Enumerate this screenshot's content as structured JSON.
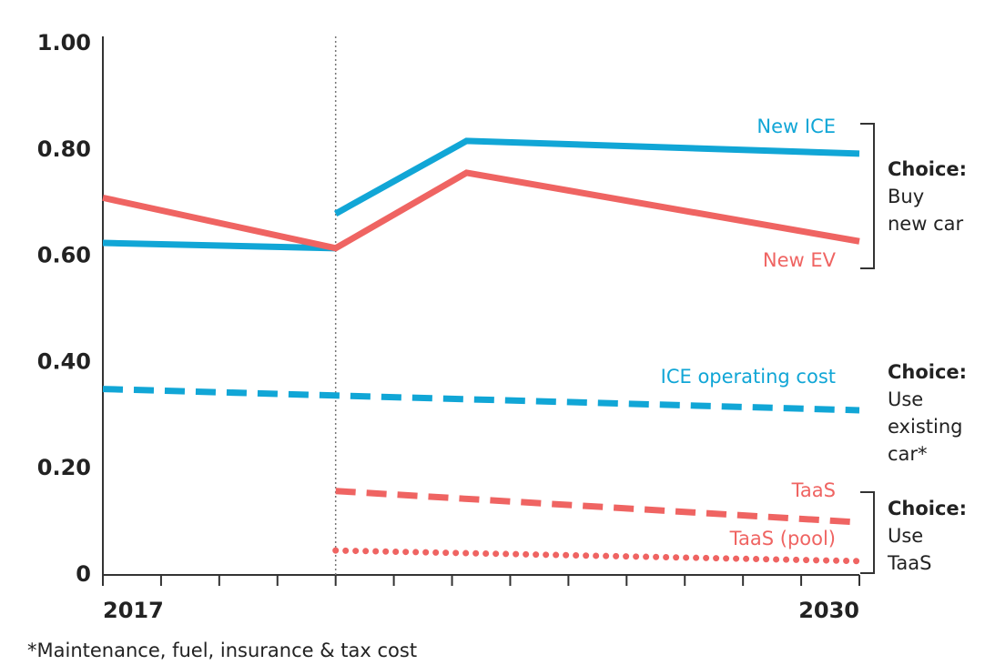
{
  "chart_data": {
    "type": "line",
    "xlim": [
      2017,
      2030
    ],
    "ylim": [
      0,
      1
    ],
    "yticks": [
      {
        "value": 0,
        "label": "0"
      },
      {
        "value": 0.2,
        "label": "0.20"
      },
      {
        "value": 0.4,
        "label": "0.40"
      },
      {
        "value": 0.6,
        "label": "0.60"
      },
      {
        "value": 0.8,
        "label": "0.80"
      },
      {
        "value": 1,
        "label": "1.00"
      }
    ],
    "xticks": [
      2017,
      {
        "value": 2018,
        "label": null
      },
      {
        "value": 2019,
        "label": null
      },
      {
        "value": 2020,
        "label": null
      },
      {
        "value": 2021,
        "label": null
      },
      {
        "value": 2022,
        "label": null
      },
      {
        "value": 2023,
        "label": null
      },
      {
        "value": 2024,
        "label": null
      },
      {
        "value": 2025,
        "label": null
      },
      {
        "value": 2026,
        "label": null
      },
      {
        "value": 2027,
        "label": null
      },
      {
        "value": 2028,
        "label": null
      },
      {
        "value": 2029,
        "label": null
      },
      2030
    ],
    "vline": 2021,
    "series": [
      {
        "name": "New ICE",
        "color": "#11a6d6",
        "style": "solid",
        "x": [
          2017,
          2021,
          2021,
          2021,
          2023.25,
          2030
        ],
        "values": [
          0.625,
          0.615,
          null,
          0.68,
          0.817,
          0.793
        ]
      },
      {
        "name": "New EV",
        "color": "#ef6462",
        "style": "solid",
        "x": [
          2017,
          2021,
          2023.25,
          2030
        ],
        "values": [
          0.71,
          0.615,
          0.757,
          0.628
        ]
      },
      {
        "name": "ICE operating cost",
        "color": "#11a6d6",
        "style": "dashed",
        "x": [
          2017,
          2030
        ],
        "values": [
          0.35,
          0.31
        ]
      },
      {
        "name": "TaaS",
        "color": "#ef6462",
        "style": "dashed",
        "x": [
          2021,
          2030
        ],
        "values": [
          0.158,
          0.099
        ]
      },
      {
        "name": "TaaS (pool)",
        "color": "#ef6462",
        "style": "dotted",
        "x": [
          2021,
          2030
        ],
        "values": [
          0.046,
          0.026
        ]
      }
    ],
    "annotations": [
      {
        "title": "Choice:",
        "lines": [
          "Buy",
          "new car"
        ]
      },
      {
        "title": "Choice:",
        "lines": [
          "Use",
          "existing",
          "car*"
        ]
      },
      {
        "title": "Choice:",
        "lines": [
          "Use",
          "TaaS"
        ]
      }
    ],
    "footnote": "*Maintenance, fuel, insurance & tax cost"
  }
}
